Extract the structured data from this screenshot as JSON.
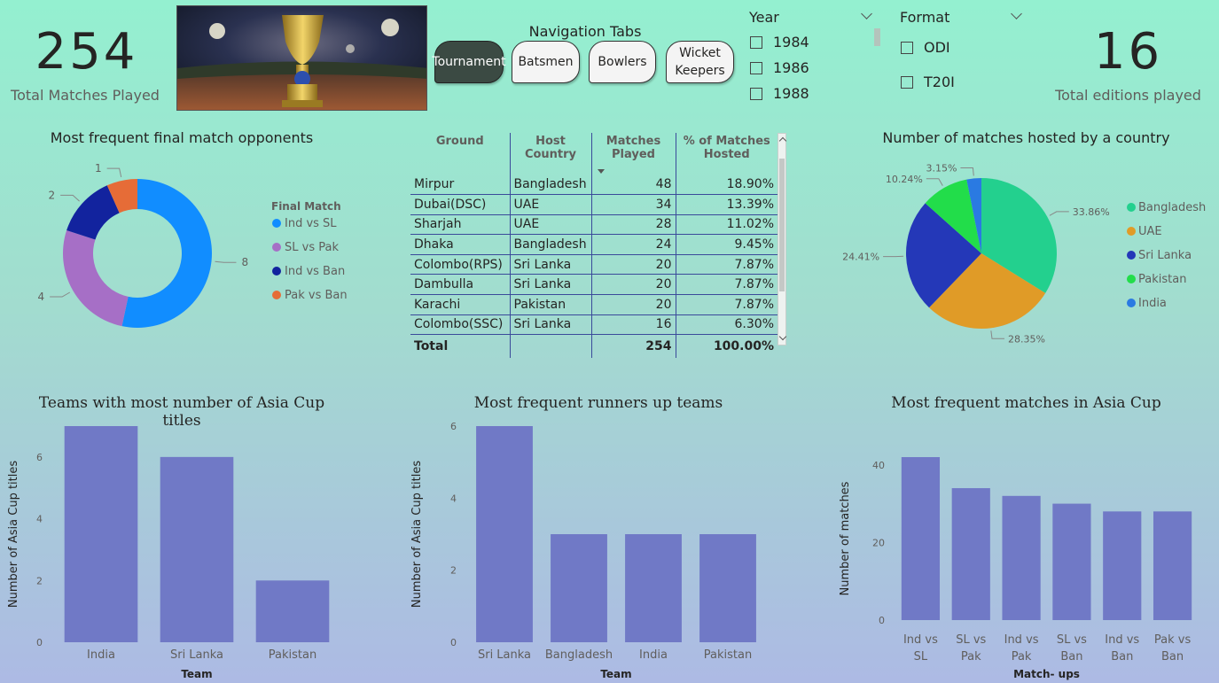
{
  "kpis": {
    "total_matches": {
      "value": "254",
      "label": "Total Matches Played"
    },
    "total_editions": {
      "value": "16",
      "label": "Total editions played"
    }
  },
  "hero_image": {
    "icon": "trophy-stadium-image",
    "colors": {
      "sky": "#1a2238",
      "pitch": "#8a4a2a",
      "trophy": "#c9a43a"
    }
  },
  "navigation": {
    "title": "Navigation Tabs",
    "tabs": [
      {
        "label": "Tournament",
        "active": true
      },
      {
        "label": "Batsmen",
        "active": false
      },
      {
        "label": "Bowlers",
        "active": false
      },
      {
        "label": "Wicket Keepers",
        "active": false
      }
    ]
  },
  "year_slicer": {
    "title": "Year",
    "options": [
      "1984",
      "1986",
      "1988"
    ]
  },
  "format_slicer": {
    "title": "Format",
    "options": [
      "ODI",
      "T20I"
    ]
  },
  "table": {
    "columns": [
      "Ground",
      "Host Country",
      "Matches Played",
      "% of Matches Hosted"
    ],
    "rows": [
      [
        "Mirpur",
        "Bangladesh",
        "48",
        "18.90%"
      ],
      [
        "Dubai(DSC)",
        "UAE",
        "34",
        "13.39%"
      ],
      [
        "Sharjah",
        "UAE",
        "28",
        "11.02%"
      ],
      [
        "Dhaka",
        "Bangladesh",
        "24",
        "9.45%"
      ],
      [
        "Colombo(RPS)",
        "Sri Lanka",
        "20",
        "7.87%"
      ],
      [
        "Dambulla",
        "Sri Lanka",
        "20",
        "7.87%"
      ],
      [
        "Karachi",
        "Pakistan",
        "20",
        "7.87%"
      ],
      [
        "Colombo(SSC)",
        "Sri Lanka",
        "16",
        "6.30%"
      ]
    ],
    "total": {
      "label": "Total",
      "matches": "254",
      "percent": "100.00%"
    }
  },
  "chart_data": [
    {
      "type": "pie",
      "variant": "donut",
      "title": "Most frequent final match opponents",
      "legend_title": "Final Match",
      "legend_position": "right",
      "categories": [
        "Ind vs SL",
        "SL vs Pak",
        "Ind vs Ban",
        "Pak vs Ban"
      ],
      "values": [
        8,
        4,
        2,
        1
      ],
      "colors": [
        "#118dff",
        "#a66fc6",
        "#12239e",
        "#e66c37"
      ]
    },
    {
      "type": "pie",
      "title": "Number of matches hosted by a country",
      "legend_position": "right",
      "categories": [
        "Bangladesh",
        "UAE",
        "Sri Lanka",
        "Pakistan",
        "India"
      ],
      "values": [
        33.86,
        28.35,
        24.41,
        10.24,
        3.15
      ],
      "labels": [
        "33.86%",
        "28.35%",
        "24.41%",
        "10.24%",
        "3.15%"
      ],
      "colors": [
        "#23d08e",
        "#e09b27",
        "#2438b8",
        "#22dd4a",
        "#2a7ae2"
      ]
    },
    {
      "type": "bar",
      "title": "Teams with most number of Asia Cup titles",
      "xlabel": "Team",
      "ylabel": "Number of Asia Cup titles",
      "categories": [
        "India",
        "Sri Lanka",
        "Pakistan"
      ],
      "values": [
        7,
        6,
        2
      ],
      "yticks": [
        0,
        2,
        4,
        6
      ],
      "ylim": [
        0,
        7
      ],
      "color": "#7079c6",
      "grid": false
    },
    {
      "type": "bar",
      "title": "Most frequent runners up teams",
      "xlabel": "Team",
      "ylabel": "Number of Asia Cup titles",
      "categories": [
        "Sri Lanka",
        "Bangladesh",
        "India",
        "Pakistan"
      ],
      "values": [
        6,
        3,
        3,
        3
      ],
      "yticks": [
        0,
        2,
        4,
        6
      ],
      "ylim": [
        0,
        6
      ],
      "color": "#7079c6",
      "grid": false
    },
    {
      "type": "bar",
      "title": "Most frequent matches in Asia Cup",
      "xlabel": "Match- ups",
      "ylabel": "Number of matches",
      "categories": [
        "Ind vs SL",
        "SL vs Pak",
        "Ind vs Pak",
        "SL vs Ban",
        "Ind vs Ban",
        "Pak vs Ban"
      ],
      "category_lines": [
        [
          "Ind vs",
          "SL"
        ],
        [
          "SL vs",
          "Pak"
        ],
        [
          "Ind vs",
          "Pak"
        ],
        [
          "SL vs",
          "Ban"
        ],
        [
          "Ind vs",
          "Ban"
        ],
        [
          "Pak vs",
          "Ban"
        ]
      ],
      "values": [
        42,
        34,
        32,
        30,
        28,
        28
      ],
      "yticks": [
        0,
        20,
        40
      ],
      "ylim": [
        0,
        42
      ],
      "color": "#7079c6",
      "grid": false
    }
  ]
}
